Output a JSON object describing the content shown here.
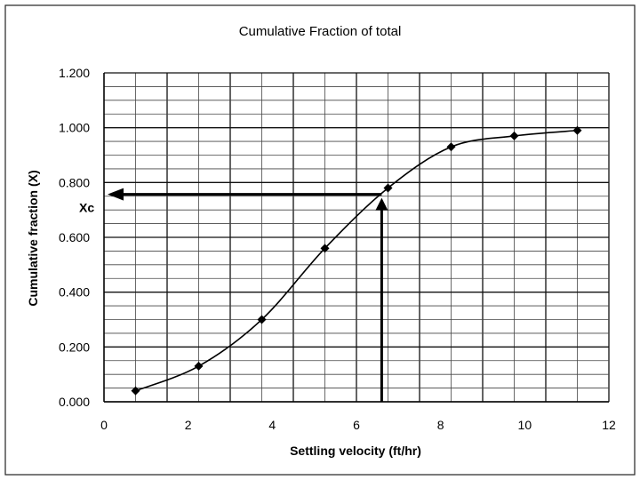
{
  "chart_data": {
    "type": "line",
    "title": "Cumulative Fraction of total",
    "xlabel": "Settling velocity (ft/hr)",
    "ylabel": "Cumulative fraction (X)",
    "xlim": [
      0,
      12
    ],
    "ylim": [
      0,
      1.2
    ],
    "xticks": [
      "0",
      "2",
      "4",
      "6",
      "8",
      "10",
      "12"
    ],
    "yticks": [
      "0.000",
      "0.200",
      "0.400",
      "0.600",
      "0.800",
      "1.000",
      "1.200"
    ],
    "grid": true,
    "legend": "none",
    "series": [
      {
        "name": "Cumulative fraction",
        "x": [
          0.75,
          2.25,
          3.75,
          5.25,
          6.75,
          8.25,
          9.75,
          11.25
        ],
        "y": [
          0.04,
          0.13,
          0.3,
          0.56,
          0.78,
          0.93,
          0.97,
          0.99
        ]
      }
    ],
    "annotations": [
      {
        "text": "Xc",
        "x": 0.0,
        "y": 0.757,
        "vertical_from_x": 6.6
      }
    ]
  }
}
